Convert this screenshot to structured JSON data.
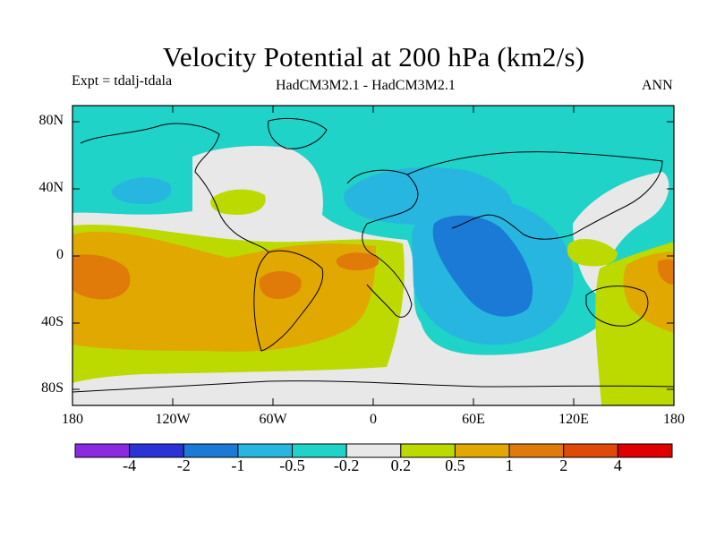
{
  "title": "Velocity Potential at 200 hPa (km2/s)",
  "subtitle_left": "Expt = tdalj-tdala",
  "subtitle_center": "HadCM3M2.1 - HadCM3M2.1",
  "subtitle_right": "ANN",
  "chart_data": {
    "type": "heatmap",
    "title": "Velocity Potential at 200 hPa (km2/s)",
    "projection": "cylindrical equidistant",
    "lon_range": [
      -180,
      180
    ],
    "lat_range": [
      -90,
      90
    ],
    "grid": false,
    "x_ticks": [
      "180",
      "120W",
      "60W",
      "0",
      "60E",
      "120E",
      "180"
    ],
    "y_ticks": [
      "80N",
      "40N",
      "0",
      "40S",
      "80S"
    ],
    "colorbar": {
      "levels": [
        "-4",
        "-2",
        "-1",
        "-0.5",
        "-0.2",
        "0.2",
        "0.5",
        "1",
        "2",
        "4"
      ],
      "colors": [
        "#8a2be2",
        "#2b33d6",
        "#1a7ad6",
        "#27b6e0",
        "#1fd3c8",
        "#e8e8e8",
        "#bcd900",
        "#e0a800",
        "#e07a08",
        "#e04a08",
        "#e00000"
      ]
    },
    "field_colors": {
      "teal": "#1fd3c8",
      "light_blue": "#27b6e0",
      "mid_blue": "#1a7ad6",
      "grey": "#e8e8e8",
      "green": "#bcd900",
      "gold": "#e0a800",
      "orange": "#e07a08"
    }
  }
}
